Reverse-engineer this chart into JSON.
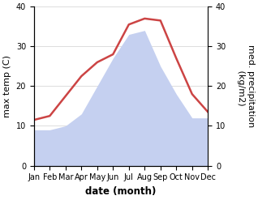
{
  "months": [
    "Jan",
    "Feb",
    "Mar",
    "Apr",
    "May",
    "Jun",
    "Jul",
    "Aug",
    "Sep",
    "Oct",
    "Nov",
    "Dec"
  ],
  "temperature": [
    11.5,
    12.5,
    17.5,
    22.5,
    26.0,
    28.0,
    35.5,
    37.0,
    36.5,
    27.0,
    18.0,
    13.5
  ],
  "precipitation": [
    9,
    9,
    10,
    13,
    20,
    27,
    33,
    34,
    25,
    18,
    12,
    12
  ],
  "temp_color": "#cc4444",
  "precip_color": "#c5d0f0",
  "ylim": [
    0,
    40
  ],
  "xlabel": "date (month)",
  "ylabel_left": "max temp (C)",
  "ylabel_right": "med. precipitation\n (kg/m2)",
  "bg_color": "#ffffff",
  "grid_color": "#d0d0d0",
  "tick_fontsize": 7,
  "label_fontsize": 8.5,
  "yticks": [
    0,
    10,
    20,
    30,
    40
  ],
  "right_ytick_labels": [
    "0",
    "10",
    "20",
    "30",
    "40"
  ]
}
